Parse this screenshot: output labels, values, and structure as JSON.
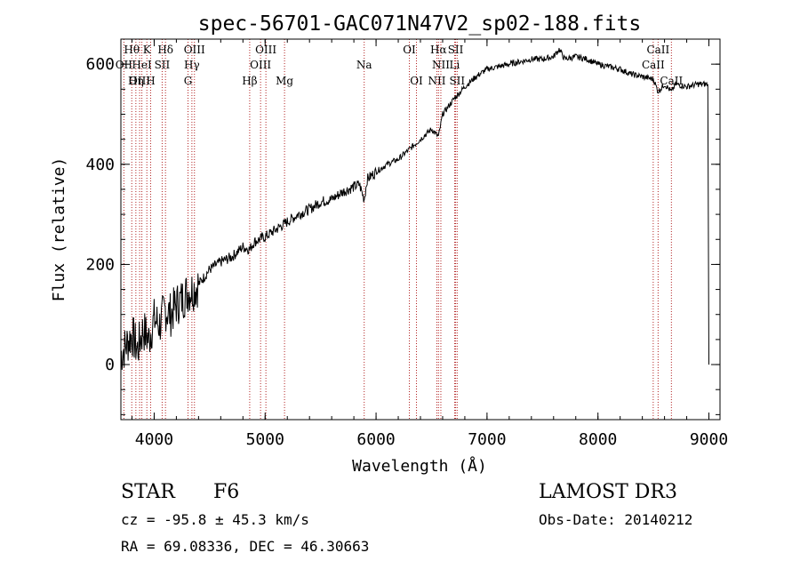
{
  "chart_data": {
    "type": "line",
    "title": "spec-56701-GAC071N47V2_sp02-188.fits",
    "xlabel": "Wavelength (Å)",
    "ylabel": "Flux (relative)",
    "xlim": [
      3700,
      9100
    ],
    "ylim": [
      -110,
      650
    ],
    "xticks": [
      4000,
      5000,
      6000,
      7000,
      8000,
      9000
    ],
    "yticks": [
      0,
      200,
      400,
      600
    ],
    "series": [
      {
        "name": "flux",
        "x": [
          3700,
          3750,
          3800,
          3850,
          3900,
          3950,
          4000,
          4050,
          4100,
          4150,
          4200,
          4250,
          4300,
          4350,
          4400,
          4500,
          4600,
          4700,
          4800,
          4861,
          4900,
          5000,
          5100,
          5200,
          5300,
          5400,
          5500,
          5600,
          5700,
          5800,
          5850,
          5893,
          5920,
          6000,
          6100,
          6200,
          6300,
          6400,
          6500,
          6563,
          6600,
          6700,
          6800,
          6900,
          7000,
          7100,
          7200,
          7300,
          7400,
          7500,
          7600,
          7650,
          7700,
          7800,
          7900,
          8000,
          8100,
          8200,
          8300,
          8400,
          8500,
          8542,
          8600,
          8662,
          8700,
          8800,
          8900,
          8990,
          9000
        ],
        "y": [
          20,
          40,
          60,
          30,
          70,
          50,
          90,
          80,
          110,
          100,
          120,
          130,
          145,
          150,
          160,
          190,
          205,
          215,
          235,
          230,
          245,
          255,
          270,
          285,
          300,
          310,
          325,
          330,
          345,
          355,
          360,
          330,
          370,
          385,
          400,
          410,
          430,
          450,
          470,
          455,
          500,
          530,
          555,
          575,
          590,
          595,
          600,
          605,
          610,
          610,
          615,
          630,
          610,
          615,
          610,
          600,
          595,
          590,
          580,
          575,
          570,
          545,
          560,
          545,
          560,
          555,
          560,
          560,
          0
        ]
      }
    ],
    "lines": [
      {
        "label": "Hθ",
        "x": 3798,
        "row": 0
      },
      {
        "label": "OII",
        "x": 3727,
        "row": 1
      },
      {
        "label": "OIII",
        "x": 3869,
        "row": 2
      },
      {
        "label": "K",
        "x": 3934,
        "row": 0
      },
      {
        "label": "HeI",
        "x": 3889,
        "row": 1
      },
      {
        "label": "Hη",
        "x": 3835,
        "row": 2
      },
      {
        "label": "H",
        "x": 3968,
        "row": 2
      },
      {
        "label": "SII",
        "x": 4072,
        "row": 1
      },
      {
        "label": "Hδ",
        "x": 4102,
        "row": 0
      },
      {
        "label": "OIII",
        "x": 4363,
        "row": 0
      },
      {
        "label": "Hγ",
        "x": 4340,
        "row": 1
      },
      {
        "label": "G",
        "x": 4305,
        "row": 2
      },
      {
        "label": "Hβ",
        "x": 4861,
        "row": 2
      },
      {
        "label": "OIII",
        "x": 5007,
        "row": 0
      },
      {
        "label": "OIII",
        "x": 4959,
        "row": 1
      },
      {
        "label": "Mg",
        "x": 5175,
        "row": 2
      },
      {
        "label": "Na",
        "x": 5893,
        "row": 1
      },
      {
        "label": "OI",
        "x": 6300,
        "row": 0
      },
      {
        "label": "OI",
        "x": 6364,
        "row": 2
      },
      {
        "label": "Hα",
        "x": 6563,
        "row": 0
      },
      {
        "label": "SII",
        "x": 6717,
        "row": 0
      },
      {
        "label": "NII",
        "x": 6584,
        "row": 1
      },
      {
        "label": "Li",
        "x": 6708,
        "row": 1
      },
      {
        "label": "NII",
        "x": 6548,
        "row": 2
      },
      {
        "label": "SII",
        "x": 6731,
        "row": 2
      },
      {
        "label": "CaII",
        "x": 8542,
        "row": 0
      },
      {
        "label": "CaII",
        "x": 8498,
        "row": 1
      },
      {
        "label": "CaII",
        "x": 8662,
        "row": 2
      }
    ]
  },
  "info": {
    "class": "STAR",
    "subclass": "F6",
    "survey": "LAMOST DR3",
    "cz": "cz = -95.8 ± 45.3 km/s",
    "obs_date": "Obs-Date: 20140212",
    "radec": "RA =  69.08336, DEC =  46.30663"
  },
  "colors": {
    "axis": "#000000",
    "line": "#000000",
    "marker": "#b22222"
  }
}
